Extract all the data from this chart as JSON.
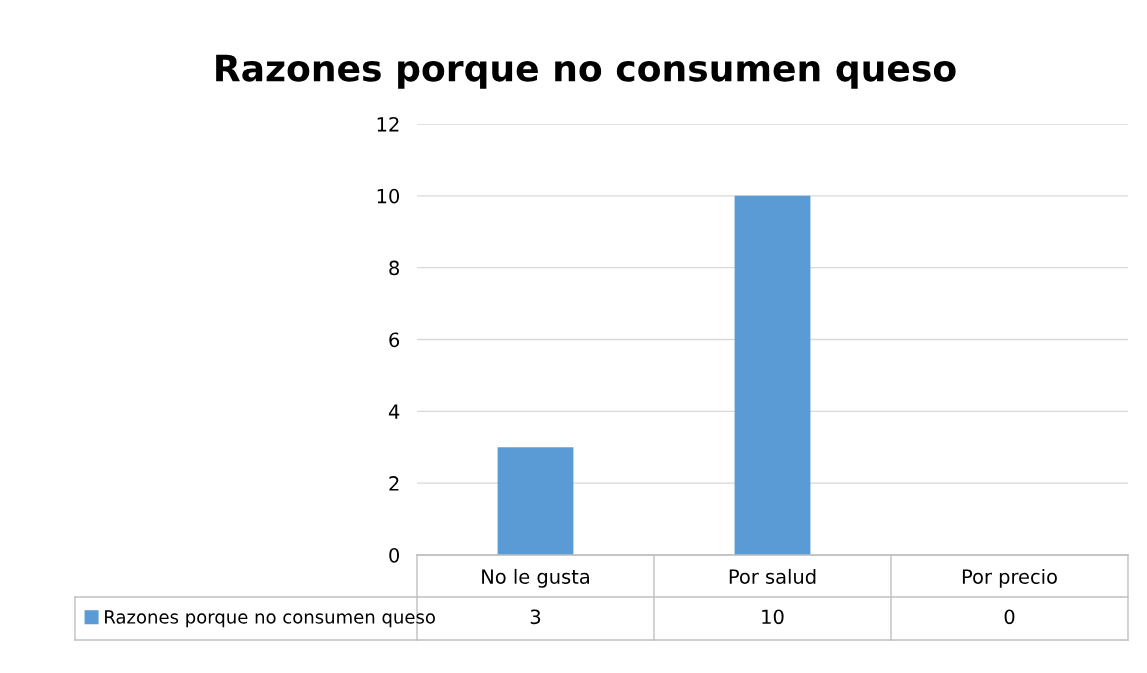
{
  "chart_data": {
    "type": "bar",
    "title": "Razones porque no consumen queso",
    "categories": [
      "No le gusta",
      "Por salud",
      "Por precio"
    ],
    "series": [
      {
        "name": "Razones porque no consumen queso",
        "color": "#5b9bd5",
        "values": [
          3,
          10,
          0
        ]
      }
    ],
    "ylim": [
      0,
      12
    ],
    "yticks": [
      0,
      2,
      4,
      6,
      8,
      10,
      12
    ],
    "grid": "y",
    "legend": "bottom left",
    "data_labels": true
  }
}
